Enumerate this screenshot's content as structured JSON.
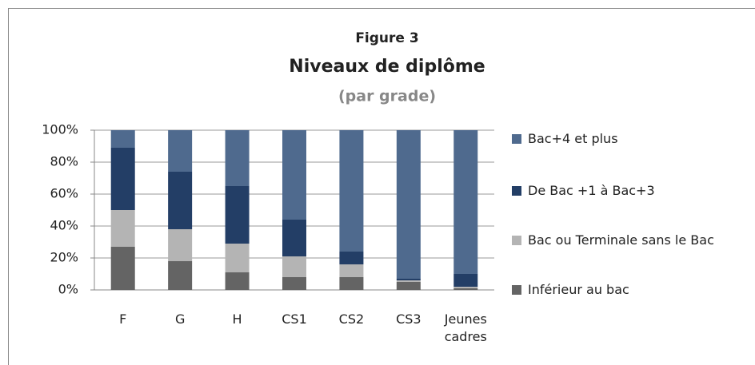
{
  "chart_data": {
    "type": "stacked_bar",
    "title": "Figure 3",
    "subtitle": "Niveaux de diplôme",
    "note": "(par grade)",
    "categories": [
      "F",
      "G",
      "H",
      "CS1",
      "CS2",
      "CS3",
      "Jeunes cadres"
    ],
    "series": [
      {
        "name": "Inférieur au bac",
        "color": "#646464",
        "values": [
          27,
          18,
          11,
          8,
          8,
          5,
          1
        ]
      },
      {
        "name": "Bac ou Terminale sans le Bac",
        "color": "#b4b4b4",
        "values": [
          23,
          20,
          18,
          13,
          8,
          1,
          1
        ]
      },
      {
        "name": "De Bac +1 à Bac+3",
        "color": "#233e66",
        "values": [
          39,
          36,
          36,
          23,
          8,
          1,
          8
        ]
      },
      {
        "name": "Bac+4 et plus",
        "color": "#4f6a8e",
        "values": [
          11,
          26,
          35,
          56,
          76,
          93,
          90
        ]
      }
    ],
    "ylim": [
      0,
      100
    ],
    "yticks": [
      {
        "value": 0,
        "label": "0%"
      },
      {
        "value": 20,
        "label": "20%"
      },
      {
        "value": 40,
        "label": "40%"
      },
      {
        "value": 60,
        "label": "60%"
      },
      {
        "value": 80,
        "label": "80%"
      },
      {
        "value": 100,
        "label": "100%"
      }
    ],
    "grid": true,
    "legend": "right"
  }
}
